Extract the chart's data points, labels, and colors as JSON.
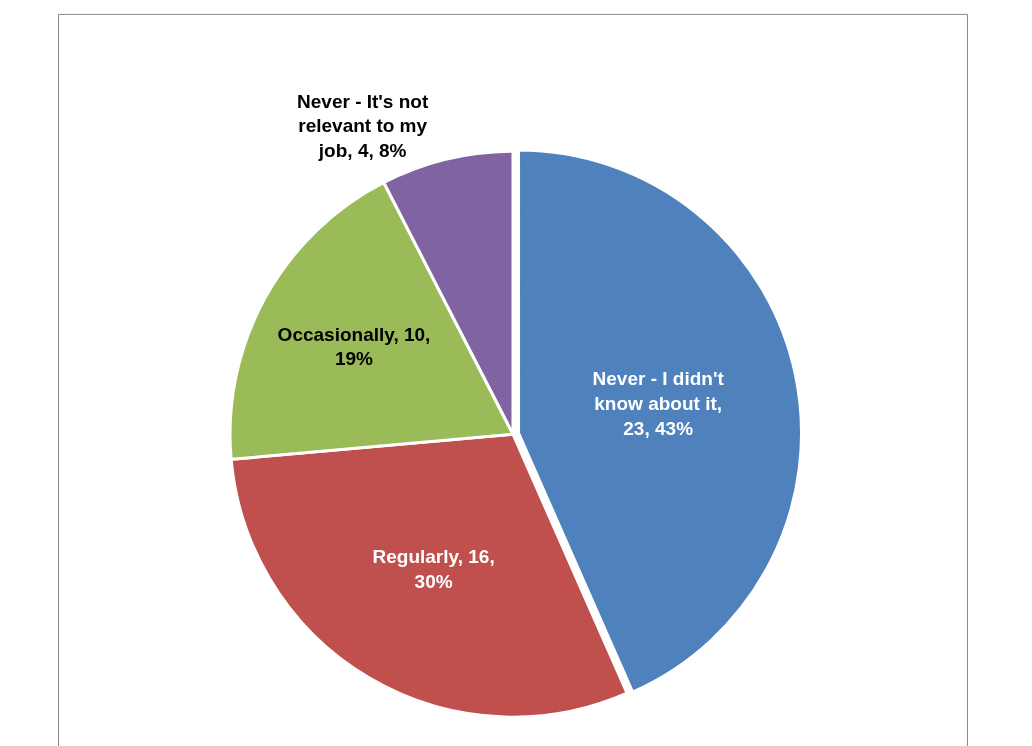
{
  "chart_data": {
    "type": "pie",
    "categories": [
      "Never - I didn't know about it",
      "Regularly",
      "Occasionally",
      "Never - It's not relevant to my job"
    ],
    "values": [
      23,
      16,
      10,
      4
    ],
    "colors": [
      "#4f81bd",
      "#c0504d",
      "#9bbb59",
      "#8064a2"
    ],
    "value_labels": [
      ", 23, 43%",
      ", 16, 30%",
      ", 10, 19%",
      ", 4, 8%"
    ]
  }
}
